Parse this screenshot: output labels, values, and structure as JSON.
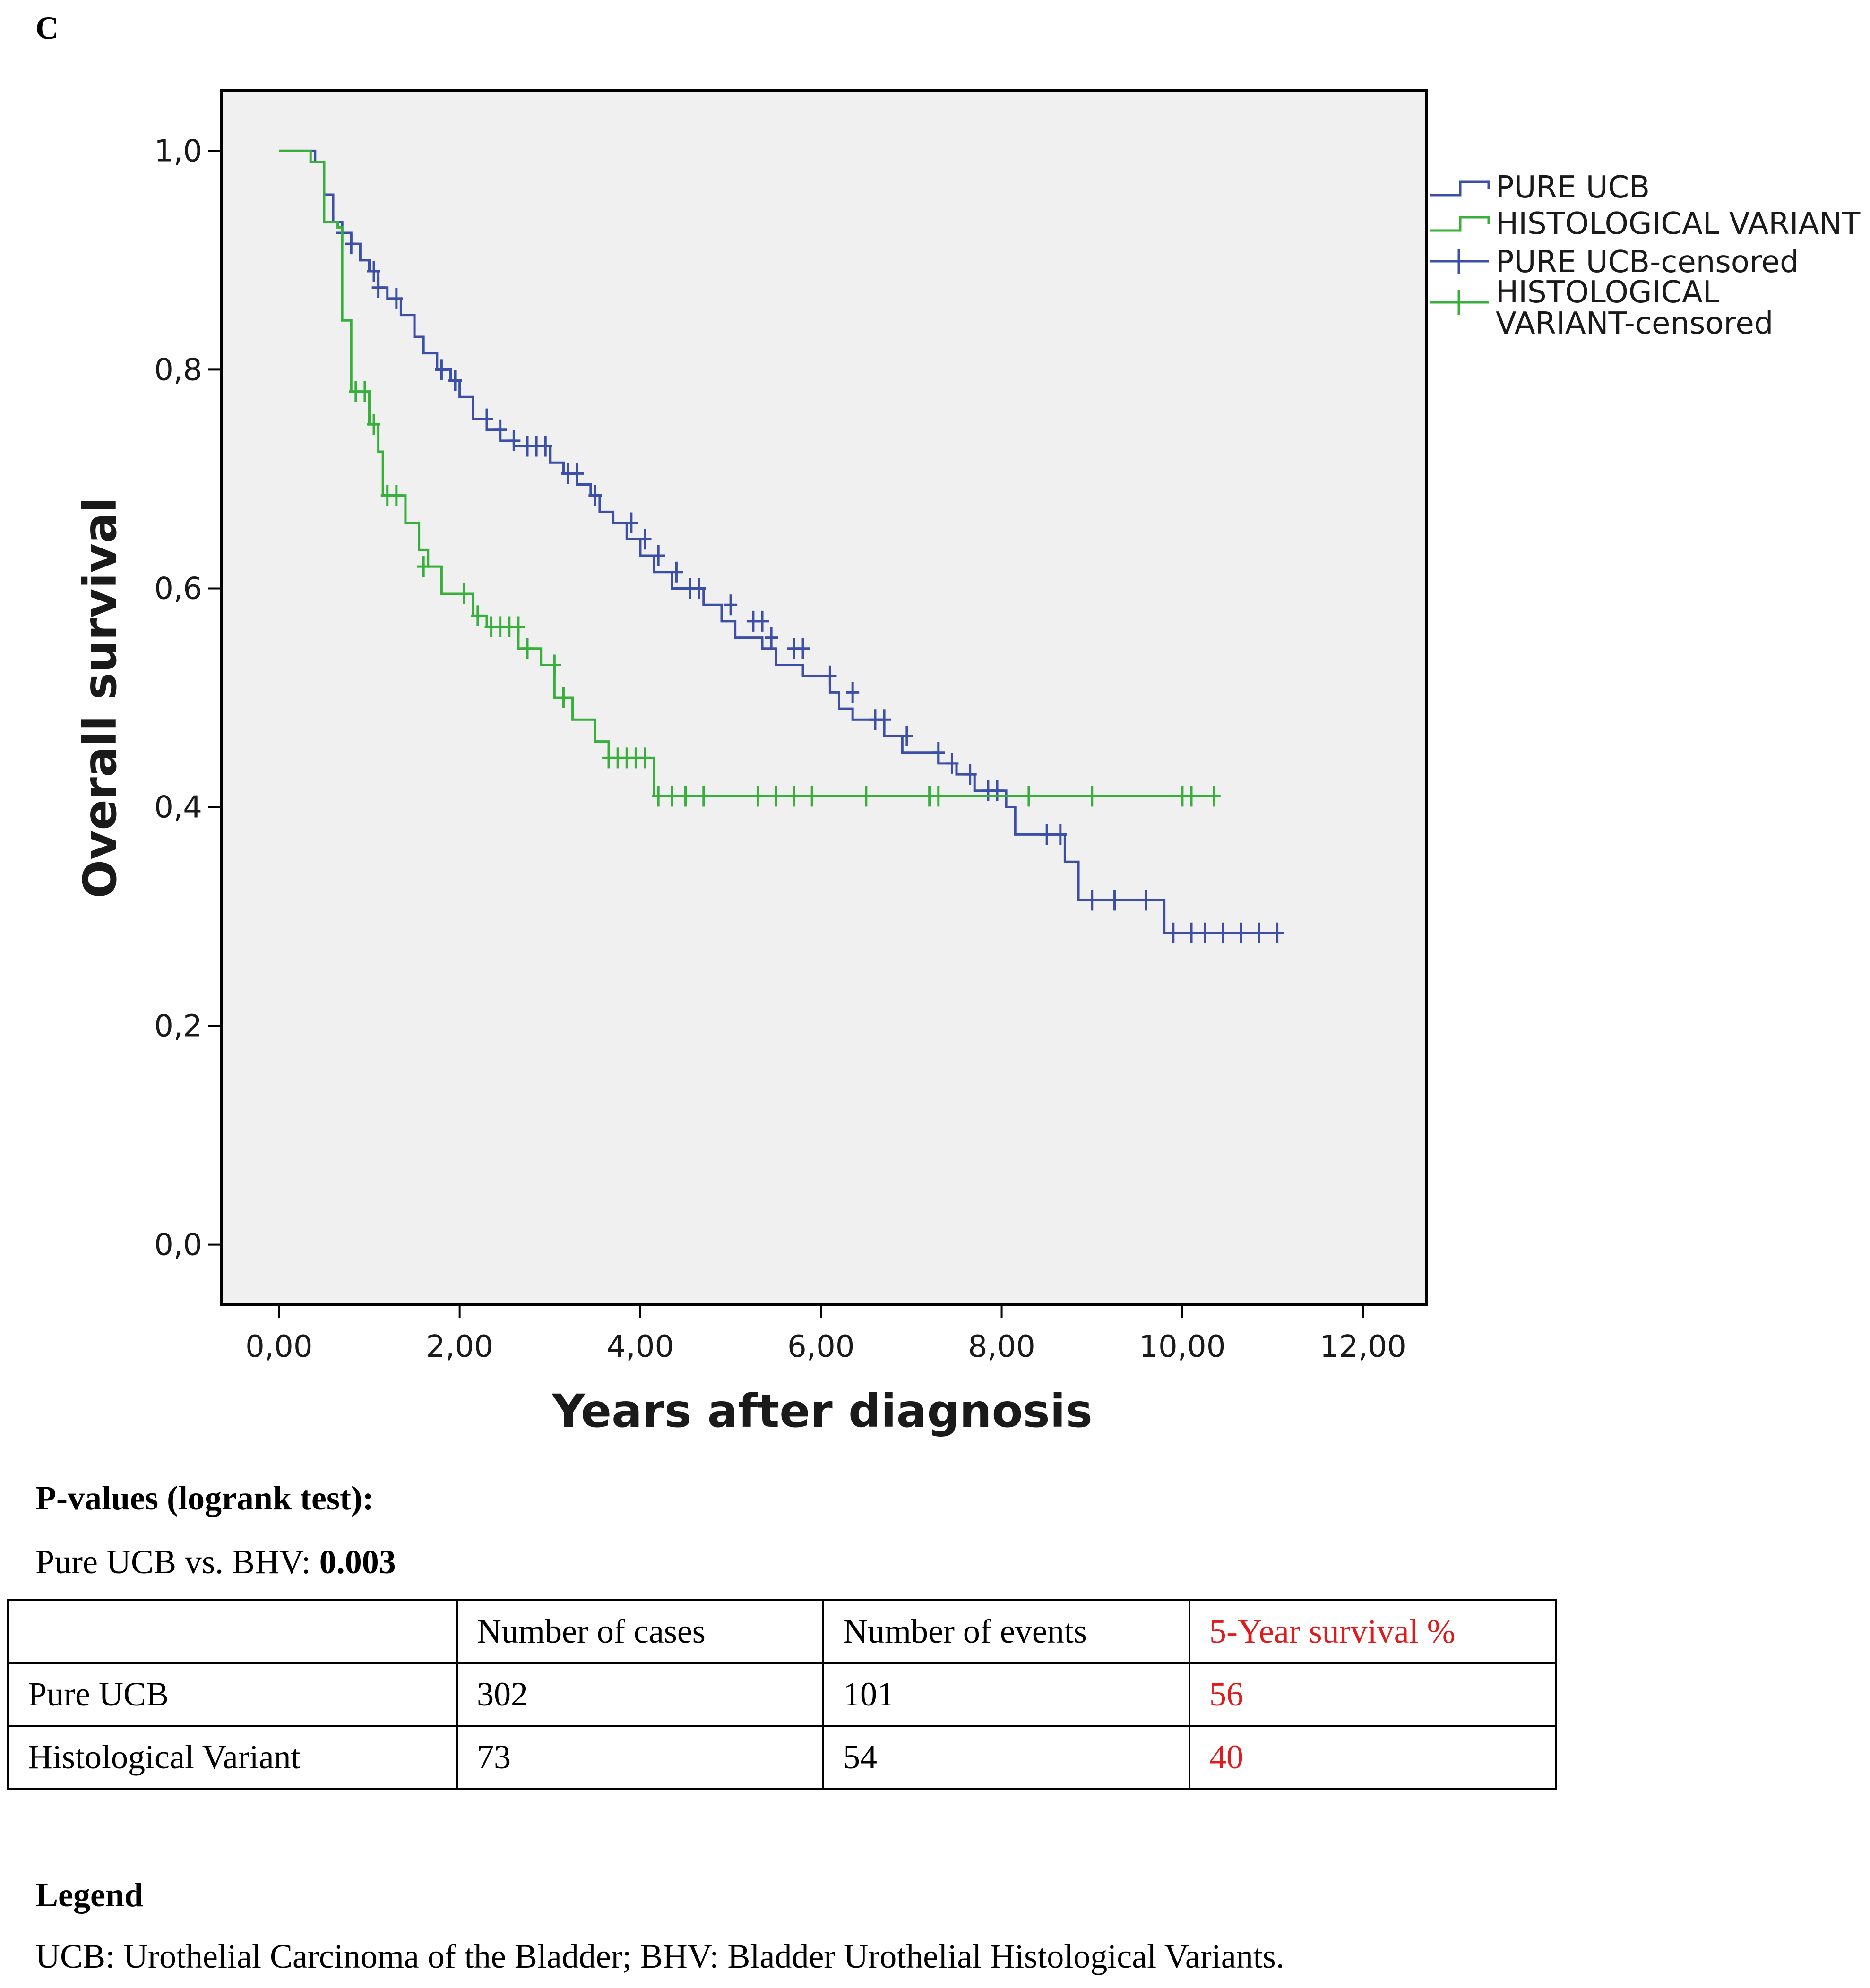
{
  "panel_letter": "C",
  "colors": {
    "ucb": "#3b4ea8",
    "hv": "#36b03a",
    "plot_bg": "#f0f0f0",
    "highlight": "#e11b1b"
  },
  "chart_data": {
    "type": "line",
    "subtype": "kaplan-meier",
    "title": "",
    "xlabel": "Years after diagnosis",
    "ylabel": "Overall survival",
    "xlim": [
      -0.64,
      12.7
    ],
    "ylim": [
      -0.055,
      1.055
    ],
    "xticks": [
      0,
      2,
      4,
      6,
      8,
      10,
      12
    ],
    "xtick_labels": [
      "0,00",
      "2,00",
      "4,00",
      "6,00",
      "8,00",
      "10,00",
      "12,00"
    ],
    "yticks": [
      0.0,
      0.2,
      0.4,
      0.6,
      0.8,
      1.0
    ],
    "ytick_labels": [
      "0,0",
      "0,2",
      "0,4",
      "0,6",
      "0,8",
      "1,0"
    ],
    "legend": {
      "position": "right, outside plot",
      "entries": [
        "PURE UCB",
        "HISTOLOGICAL VARIANT",
        "PURE UCB-censored",
        "HISTOLOGICAL VARIANT-censored"
      ]
    },
    "series": [
      {
        "name": "PURE UCB",
        "color": "#3b4ea8",
        "steps": [
          [
            0,
            1.0
          ],
          [
            0.4,
            0.99
          ],
          [
            0.5,
            0.96
          ],
          [
            0.6,
            0.935
          ],
          [
            0.7,
            0.925
          ],
          [
            0.8,
            0.915
          ],
          [
            0.9,
            0.9
          ],
          [
            1.0,
            0.89
          ],
          [
            1.1,
            0.875
          ],
          [
            1.2,
            0.865
          ],
          [
            1.35,
            0.85
          ],
          [
            1.5,
            0.83
          ],
          [
            1.6,
            0.815
          ],
          [
            1.75,
            0.8
          ],
          [
            1.9,
            0.79
          ],
          [
            2.0,
            0.775
          ],
          [
            2.15,
            0.755
          ],
          [
            2.3,
            0.745
          ],
          [
            2.45,
            0.735
          ],
          [
            2.6,
            0.73
          ],
          [
            3.0,
            0.715
          ],
          [
            3.15,
            0.705
          ],
          [
            3.3,
            0.695
          ],
          [
            3.45,
            0.685
          ],
          [
            3.55,
            0.67
          ],
          [
            3.7,
            0.66
          ],
          [
            3.85,
            0.645
          ],
          [
            4.0,
            0.63
          ],
          [
            4.15,
            0.615
          ],
          [
            4.35,
            0.6
          ],
          [
            4.7,
            0.585
          ],
          [
            4.9,
            0.57
          ],
          [
            5.05,
            0.555
          ],
          [
            5.35,
            0.545
          ],
          [
            5.5,
            0.53
          ],
          [
            5.8,
            0.52
          ],
          [
            6.1,
            0.505
          ],
          [
            6.2,
            0.49
          ],
          [
            6.35,
            0.48
          ],
          [
            6.7,
            0.465
          ],
          [
            6.9,
            0.45
          ],
          [
            7.3,
            0.44
          ],
          [
            7.5,
            0.43
          ],
          [
            7.7,
            0.415
          ],
          [
            8.05,
            0.4
          ],
          [
            8.15,
            0.375
          ],
          [
            8.7,
            0.35
          ],
          [
            8.85,
            0.315
          ],
          [
            9.8,
            0.285
          ],
          [
            11.05,
            0.285
          ]
        ],
        "censored": [
          [
            0.7,
            0.925
          ],
          [
            0.8,
            0.915
          ],
          [
            1.05,
            0.89
          ],
          [
            1.1,
            0.875
          ],
          [
            1.3,
            0.865
          ],
          [
            1.8,
            0.8
          ],
          [
            1.95,
            0.79
          ],
          [
            2.3,
            0.755
          ],
          [
            2.45,
            0.745
          ],
          [
            2.6,
            0.735
          ],
          [
            2.75,
            0.73
          ],
          [
            2.85,
            0.73
          ],
          [
            2.95,
            0.73
          ],
          [
            3.2,
            0.705
          ],
          [
            3.3,
            0.705
          ],
          [
            3.5,
            0.685
          ],
          [
            3.9,
            0.66
          ],
          [
            4.05,
            0.645
          ],
          [
            4.2,
            0.63
          ],
          [
            4.4,
            0.615
          ],
          [
            4.55,
            0.6
          ],
          [
            4.65,
            0.6
          ],
          [
            5.0,
            0.585
          ],
          [
            5.25,
            0.57
          ],
          [
            5.35,
            0.57
          ],
          [
            5.45,
            0.555
          ],
          [
            5.7,
            0.545
          ],
          [
            5.8,
            0.545
          ],
          [
            6.1,
            0.52
          ],
          [
            6.35,
            0.505
          ],
          [
            6.6,
            0.48
          ],
          [
            6.7,
            0.48
          ],
          [
            6.95,
            0.465
          ],
          [
            7.3,
            0.45
          ],
          [
            7.45,
            0.44
          ],
          [
            7.65,
            0.43
          ],
          [
            7.85,
            0.415
          ],
          [
            7.95,
            0.415
          ],
          [
            8.5,
            0.375
          ],
          [
            8.65,
            0.375
          ],
          [
            9.0,
            0.315
          ],
          [
            9.25,
            0.315
          ],
          [
            9.6,
            0.315
          ],
          [
            9.9,
            0.285
          ],
          [
            10.1,
            0.285
          ],
          [
            10.25,
            0.285
          ],
          [
            10.45,
            0.285
          ],
          [
            10.65,
            0.285
          ],
          [
            10.85,
            0.285
          ],
          [
            11.05,
            0.285
          ]
        ]
      },
      {
        "name": "HISTOLOGICAL VARIANT",
        "color": "#36b03a",
        "steps": [
          [
            0,
            1.0
          ],
          [
            0.35,
            0.99
          ],
          [
            0.5,
            0.935
          ],
          [
            0.65,
            0.93
          ],
          [
            0.7,
            0.845
          ],
          [
            0.8,
            0.78
          ],
          [
            1.0,
            0.75
          ],
          [
            1.1,
            0.725
          ],
          [
            1.15,
            0.685
          ],
          [
            1.4,
            0.66
          ],
          [
            1.55,
            0.635
          ],
          [
            1.65,
            0.62
          ],
          [
            1.8,
            0.595
          ],
          [
            2.15,
            0.575
          ],
          [
            2.3,
            0.565
          ],
          [
            2.65,
            0.545
          ],
          [
            2.9,
            0.53
          ],
          [
            3.05,
            0.5
          ],
          [
            3.25,
            0.48
          ],
          [
            3.5,
            0.46
          ],
          [
            3.65,
            0.445
          ],
          [
            4.15,
            0.41
          ],
          [
            10.4,
            0.41
          ]
        ],
        "censored": [
          [
            0.85,
            0.78
          ],
          [
            0.95,
            0.78
          ],
          [
            1.05,
            0.75
          ],
          [
            1.2,
            0.685
          ],
          [
            1.3,
            0.685
          ],
          [
            1.6,
            0.62
          ],
          [
            2.05,
            0.595
          ],
          [
            2.2,
            0.575
          ],
          [
            2.35,
            0.565
          ],
          [
            2.45,
            0.565
          ],
          [
            2.55,
            0.565
          ],
          [
            2.65,
            0.565
          ],
          [
            2.75,
            0.545
          ],
          [
            3.05,
            0.53
          ],
          [
            3.15,
            0.5
          ],
          [
            3.65,
            0.445
          ],
          [
            3.75,
            0.445
          ],
          [
            3.85,
            0.445
          ],
          [
            3.95,
            0.445
          ],
          [
            4.05,
            0.445
          ],
          [
            4.2,
            0.41
          ],
          [
            4.35,
            0.41
          ],
          [
            4.5,
            0.41
          ],
          [
            4.7,
            0.41
          ],
          [
            5.3,
            0.41
          ],
          [
            5.5,
            0.41
          ],
          [
            5.7,
            0.41
          ],
          [
            5.9,
            0.41
          ],
          [
            6.5,
            0.41
          ],
          [
            7.2,
            0.41
          ],
          [
            7.3,
            0.41
          ],
          [
            8.3,
            0.41
          ],
          [
            9.0,
            0.41
          ],
          [
            10.0,
            0.41
          ],
          [
            10.1,
            0.41
          ],
          [
            10.35,
            0.41
          ]
        ]
      }
    ]
  },
  "pvalues": {
    "title": "P-values (logrank test):",
    "comparison_label": "Pure UCB vs. BHV: ",
    "comparison_value": "0.003"
  },
  "table": {
    "headers": [
      "",
      "Number of cases",
      "Number of events",
      "5-Year survival %"
    ],
    "rows": [
      {
        "cells": [
          "Pure UCB",
          "302",
          "101",
          "56"
        ]
      },
      {
        "cells": [
          "Histological Variant",
          "73",
          "54",
          "40"
        ]
      }
    ]
  },
  "legend_section": {
    "title": "Legend",
    "text": "UCB: Urothelial Carcinoma of the Bladder; BHV: Bladder Urothelial Histological Variants."
  }
}
